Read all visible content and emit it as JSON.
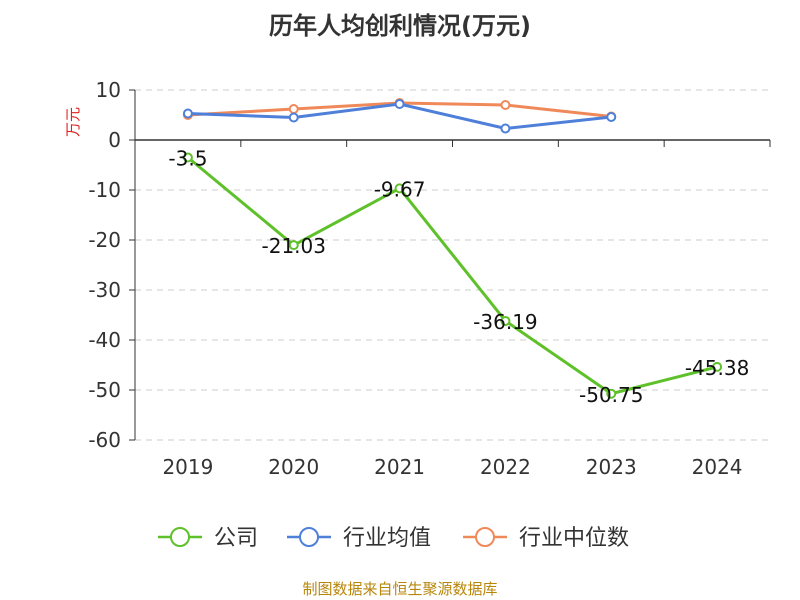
{
  "title": "历年人均创利情况(万元)",
  "source": "制图数据来自恒生聚源数据库",
  "chart_data": {
    "type": "line",
    "title": "历年人均创利情况(万元)",
    "ylabel": "万元",
    "xlabel": "",
    "categories": [
      "2019",
      "2020",
      "2021",
      "2022",
      "2023",
      "2024"
    ],
    "ylim": [
      -60,
      10
    ],
    "yticks": [
      10,
      0,
      -10,
      -20,
      -30,
      -40,
      -50,
      -60
    ],
    "grid": true,
    "legend_position": "bottom",
    "series": [
      {
        "name": "公司",
        "color": "#5ec12a",
        "values": [
          -3.5,
          -21.03,
          -9.67,
          -36.19,
          -50.75,
          -45.38
        ],
        "labels": [
          "-3.5",
          "-21.03",
          "-9.67",
          "-36.19",
          "-50.75",
          "-45.38"
        ]
      },
      {
        "name": "行业均值",
        "color": "#4e7fd9",
        "values": [
          5.3,
          4.5,
          7.2,
          2.3,
          4.6,
          null
        ]
      },
      {
        "name": "行业中位数",
        "color": "#f0895a",
        "values": [
          5.0,
          6.2,
          7.4,
          7.0,
          4.7,
          null
        ]
      }
    ]
  }
}
